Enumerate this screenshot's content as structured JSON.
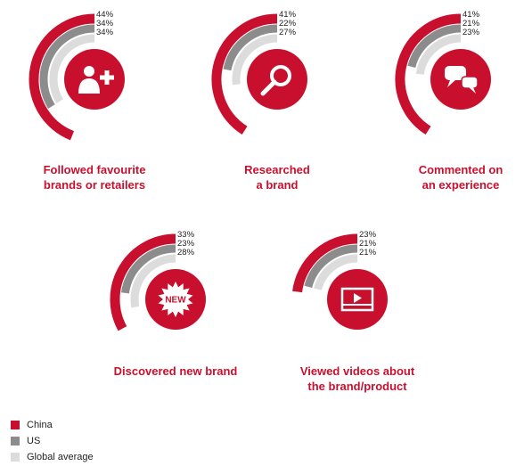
{
  "chart_data": {
    "type": "radial-bar",
    "series": [
      {
        "name": "China",
        "color": "#c8102e"
      },
      {
        "name": "US",
        "color": "#8c8c8c"
      },
      {
        "name": "Global average",
        "color": "#dcdcdc"
      }
    ],
    "panels": [
      {
        "caption": [
          "Followed favourite",
          "brands or retailers"
        ],
        "values": [
          44,
          34,
          34
        ],
        "labels": [
          "44%",
          "34%",
          "34%"
        ],
        "icon": "person-plus-icon"
      },
      {
        "caption": [
          "Researched",
          "a brand"
        ],
        "values": [
          41,
          22,
          27
        ],
        "labels": [
          "41%",
          "22%",
          "27%"
        ],
        "icon": "magnifier-icon"
      },
      {
        "caption": [
          "Commented on",
          "an experience"
        ],
        "values": [
          41,
          21,
          23
        ],
        "labels": [
          "41%",
          "21%",
          "23%"
        ],
        "icon": "speech-bubbles-icon"
      },
      {
        "caption": [
          "Discovered new brand"
        ],
        "values": [
          33,
          23,
          28
        ],
        "labels": [
          "33%",
          "23%",
          "28%"
        ],
        "icon": "new-burst-icon",
        "icon_text": "NEW"
      },
      {
        "caption": [
          "Viewed videos about",
          "the brand/product"
        ],
        "values": [
          23,
          21,
          21
        ],
        "labels": [
          "23%",
          "21%",
          "21%"
        ],
        "icon": "video-play-icon"
      }
    ]
  }
}
